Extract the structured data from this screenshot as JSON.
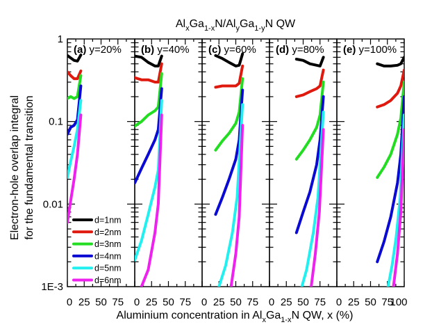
{
  "chart_data": {
    "type": "line",
    "title": {
      "prefix": "Al",
      "sub1": "x",
      "mid1": "Ga",
      "sub2": "1-x",
      "mid2": "N/Al",
      "sub3": "y",
      "mid3": "Ga",
      "sub4": "1-y",
      "suffix": "N QW"
    },
    "xlabel": {
      "prefix": "Aluminium concentration in Al",
      "sub1": "x",
      "mid": "Ga",
      "sub2": "1-x",
      "suffix": "N QW, x (%)"
    },
    "ylabel": [
      "Electron-hole overlap integral",
      "for the fundamental transition"
    ],
    "yscale": "log",
    "ylim": [
      0.001,
      1
    ],
    "xlim": [
      0,
      100
    ],
    "ytick_labels": [
      {
        "value": 1,
        "label": "1"
      },
      {
        "value": 0.1,
        "label": "0.1"
      },
      {
        "value": 0.01,
        "label": "0.01"
      },
      {
        "value": 0.001,
        "label": "1E-3"
      }
    ],
    "xtick_labels": [
      "0",
      "25",
      "50",
      "75",
      "100"
    ],
    "series_names": [
      "d=1nm",
      "d=2nm",
      "d=3nm",
      "d=4nm",
      "d=5nm",
      "d=6nm"
    ],
    "colors": [
      "#000000",
      "#e0190f",
      "#22dd22",
      "#0a0ad2",
      "#22f0f0",
      "#ee22ee"
    ],
    "panels": [
      {
        "label": "(a) y=20%",
        "series": [
          {
            "name": "d=1nm",
            "x": [
              0,
              5,
              10,
              15,
              20
            ],
            "y": [
              0.63,
              0.59,
              0.55,
              0.54,
              0.64
            ]
          },
          {
            "name": "d=2nm",
            "x": [
              0,
              5,
              10,
              15,
              20
            ],
            "y": [
              0.4,
              0.36,
              0.33,
              0.33,
              0.41
            ]
          },
          {
            "name": "d=3nm",
            "x": [
              0,
              5,
              10,
              15,
              20
            ],
            "y": [
              0.19,
              0.2,
              0.19,
              0.2,
              0.36
            ]
          },
          {
            "name": "d=4nm",
            "x": [
              0,
              5,
              10,
              15,
              20
            ],
            "y": [
              0.07,
              0.085,
              0.09,
              0.105,
              0.27
            ]
          },
          {
            "name": "d=5nm",
            "x": [
              0,
              5,
              10,
              15,
              20
            ],
            "y": [
              0.021,
              0.033,
              0.05,
              0.08,
              0.18
            ]
          },
          {
            "name": "d=6nm",
            "x": [
              0,
              5,
              10,
              15,
              20
            ],
            "y": [
              0.006,
              0.011,
              0.02,
              0.04,
              0.12
            ]
          }
        ]
      },
      {
        "label": "(b) y=40%",
        "series": [
          {
            "name": "d=1nm",
            "x": [
              0,
              10,
              20,
              30,
              35,
              40
            ],
            "y": [
              0.62,
              0.6,
              0.52,
              0.47,
              0.47,
              0.62
            ]
          },
          {
            "name": "d=2nm",
            "x": [
              0,
              10,
              20,
              30,
              35,
              40
            ],
            "y": [
              0.34,
              0.32,
              0.32,
              0.3,
              0.3,
              0.5
            ]
          },
          {
            "name": "d=3nm",
            "x": [
              0,
              10,
              20,
              30,
              35,
              40
            ],
            "y": [
              0.088,
              0.1,
              0.12,
              0.135,
              0.15,
              0.38
            ]
          },
          {
            "name": "d=4nm",
            "x": [
              0,
              10,
              20,
              30,
              35,
              40
            ],
            "y": [
              0.018,
              0.027,
              0.04,
              0.06,
              0.08,
              0.25
            ]
          },
          {
            "name": "d=5nm",
            "x": [
              0,
              10,
              20,
              30,
              35,
              40
            ],
            "y": [
              0.0021,
              0.0036,
              0.0075,
              0.016,
              0.026,
              0.18
            ]
          },
          {
            "name": "d=6nm",
            "x": [
              10,
              20,
              30,
              35,
              40
            ],
            "y": [
              0.001,
              0.0016,
              0.0045,
              0.01,
              0.12
            ]
          }
        ]
      },
      {
        "label": "(c) y=60%",
        "series": [
          {
            "name": "d=1nm",
            "x": [
              20,
              30,
              40,
              50,
              55,
              60
            ],
            "y": [
              0.63,
              0.58,
              0.52,
              0.47,
              0.48,
              0.66
            ]
          },
          {
            "name": "d=2nm",
            "x": [
              20,
              30,
              40,
              50,
              55,
              60
            ],
            "y": [
              0.26,
              0.27,
              0.27,
              0.27,
              0.29,
              0.47
            ]
          },
          {
            "name": "d=3nm",
            "x": [
              20,
              30,
              40,
              50,
              55,
              60
            ],
            "y": [
              0.045,
              0.058,
              0.072,
              0.095,
              0.13,
              0.33
            ]
          },
          {
            "name": "d=4nm",
            "x": [
              20,
              30,
              40,
              50,
              55,
              60
            ],
            "y": [
              0.0075,
              0.012,
              0.02,
              0.035,
              0.06,
              0.24
            ]
          },
          {
            "name": "d=5nm",
            "x": [
              25,
              35,
              45,
              52,
              60
            ],
            "y": [
              0.001,
              0.0018,
              0.0045,
              0.012,
              0.16
            ]
          },
          {
            "name": "d=6nm",
            "x": [
              43,
              50,
              55,
              60
            ],
            "y": [
              0.001,
              0.0025,
              0.007,
              0.09
            ]
          }
        ]
      },
      {
        "label": "(d) y=80%",
        "series": [
          {
            "name": "d=1nm",
            "x": [
              40,
              50,
              60,
              70,
              75,
              80
            ],
            "y": [
              0.57,
              0.55,
              0.5,
              0.48,
              0.47,
              0.6
            ]
          },
          {
            "name": "d=2nm",
            "x": [
              40,
              50,
              60,
              70,
              75,
              80
            ],
            "y": [
              0.2,
              0.21,
              0.23,
              0.25,
              0.27,
              0.42
            ]
          },
          {
            "name": "d=3nm",
            "x": [
              40,
              50,
              60,
              70,
              75,
              80
            ],
            "y": [
              0.035,
              0.045,
              0.06,
              0.085,
              0.12,
              0.3
            ]
          },
          {
            "name": "d=4nm",
            "x": [
              40,
              50,
              60,
              70,
              75,
              80
            ],
            "y": [
              0.0045,
              0.008,
              0.014,
              0.03,
              0.06,
              0.2
            ]
          },
          {
            "name": "d=5nm",
            "x": [
              48,
              55,
              65,
              72,
              80
            ],
            "y": [
              0.001,
              0.0016,
              0.0045,
              0.012,
              0.13
            ]
          },
          {
            "name": "d=6nm",
            "x": [
              62,
              68,
              74,
              80
            ],
            "y": [
              0.001,
              0.0025,
              0.008,
              0.08
            ]
          }
        ]
      },
      {
        "label": "(e) y=100%",
        "series": [
          {
            "name": "d=1nm",
            "x": [
              60,
              70,
              80,
              90,
              95,
              100
            ],
            "y": [
              0.5,
              0.47,
              0.47,
              0.48,
              0.5,
              0.6
            ]
          },
          {
            "name": "d=2nm",
            "x": [
              60,
              70,
              80,
              90,
              95,
              100
            ],
            "y": [
              0.15,
              0.16,
              0.18,
              0.22,
              0.27,
              0.42
            ]
          },
          {
            "name": "d=3nm",
            "x": [
              60,
              70,
              80,
              90,
              95,
              100
            ],
            "y": [
              0.021,
              0.028,
              0.04,
              0.07,
              0.11,
              0.3
            ]
          },
          {
            "name": "d=4nm",
            "x": [
              60,
              70,
              80,
              90,
              95,
              100
            ],
            "y": [
              0.002,
              0.0035,
              0.007,
              0.018,
              0.04,
              0.2
            ]
          },
          {
            "name": "d=5nm",
            "x": [
              76,
              82,
              88,
              94,
              100
            ],
            "y": [
              0.001,
              0.0018,
              0.004,
              0.012,
              0.12
            ]
          },
          {
            "name": "d=6nm",
            "x": [
              84,
              90,
              95,
              100
            ],
            "y": [
              0.001,
              0.0025,
              0.008,
              0.08
            ]
          }
        ]
      }
    ]
  }
}
